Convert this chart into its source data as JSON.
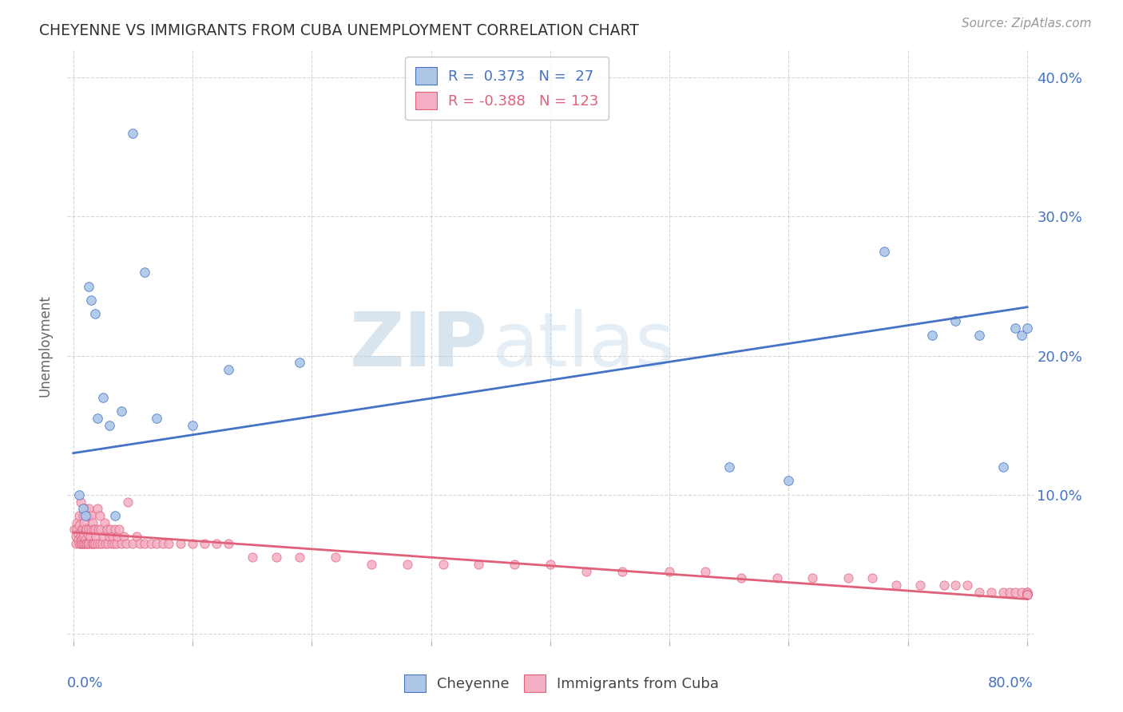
{
  "title": "CHEYENNE VS IMMIGRANTS FROM CUBA UNEMPLOYMENT CORRELATION CHART",
  "source": "Source: ZipAtlas.com",
  "ylabel": "Unemployment",
  "cheyenne_R": 0.373,
  "cheyenne_N": 27,
  "cuba_R": -0.388,
  "cuba_N": 123,
  "cheyenne_color": "#adc6e8",
  "cheyenne_line_color": "#4472c4",
  "cuba_color": "#f4afc4",
  "cuba_line_color": "#e0607a",
  "cheyenne_x": [
    0.005,
    0.008,
    0.01,
    0.013,
    0.015,
    0.018,
    0.02,
    0.025,
    0.03,
    0.035,
    0.04,
    0.05,
    0.06,
    0.07,
    0.1,
    0.13,
    0.19,
    0.55,
    0.6,
    0.68,
    0.72,
    0.74,
    0.76,
    0.78,
    0.79,
    0.795,
    0.8
  ],
  "cheyenne_y": [
    0.1,
    0.09,
    0.085,
    0.25,
    0.24,
    0.23,
    0.155,
    0.17,
    0.15,
    0.085,
    0.16,
    0.36,
    0.26,
    0.155,
    0.15,
    0.19,
    0.195,
    0.12,
    0.11,
    0.275,
    0.215,
    0.225,
    0.215,
    0.12,
    0.22,
    0.215,
    0.22
  ],
  "cuba_x": [
    0.001,
    0.002,
    0.002,
    0.003,
    0.003,
    0.004,
    0.004,
    0.005,
    0.005,
    0.005,
    0.006,
    0.006,
    0.006,
    0.007,
    0.007,
    0.007,
    0.008,
    0.008,
    0.008,
    0.008,
    0.009,
    0.009,
    0.009,
    0.01,
    0.01,
    0.01,
    0.01,
    0.011,
    0.011,
    0.012,
    0.012,
    0.012,
    0.013,
    0.013,
    0.013,
    0.014,
    0.015,
    0.015,
    0.015,
    0.016,
    0.016,
    0.017,
    0.017,
    0.018,
    0.018,
    0.019,
    0.02,
    0.02,
    0.021,
    0.022,
    0.022,
    0.023,
    0.024,
    0.025,
    0.026,
    0.027,
    0.028,
    0.029,
    0.03,
    0.031,
    0.032,
    0.033,
    0.034,
    0.035,
    0.036,
    0.037,
    0.038,
    0.04,
    0.042,
    0.044,
    0.046,
    0.05,
    0.053,
    0.056,
    0.06,
    0.065,
    0.07,
    0.075,
    0.08,
    0.09,
    0.1,
    0.11,
    0.12,
    0.13,
    0.15,
    0.17,
    0.19,
    0.22,
    0.25,
    0.28,
    0.31,
    0.34,
    0.37,
    0.4,
    0.43,
    0.46,
    0.5,
    0.53,
    0.56,
    0.59,
    0.62,
    0.65,
    0.67,
    0.69,
    0.71,
    0.73,
    0.74,
    0.75,
    0.76,
    0.77,
    0.78,
    0.785,
    0.79,
    0.795,
    0.8,
    0.8,
    0.8,
    0.8,
    0.8,
    0.8,
    0.8,
    0.8,
    0.8
  ],
  "cuba_y": [
    0.075,
    0.07,
    0.065,
    0.08,
    0.075,
    0.072,
    0.068,
    0.085,
    0.078,
    0.065,
    0.095,
    0.07,
    0.065,
    0.075,
    0.068,
    0.065,
    0.085,
    0.075,
    0.07,
    0.065,
    0.08,
    0.072,
    0.065,
    0.09,
    0.075,
    0.068,
    0.065,
    0.075,
    0.065,
    0.085,
    0.072,
    0.065,
    0.09,
    0.075,
    0.065,
    0.07,
    0.085,
    0.075,
    0.065,
    0.08,
    0.065,
    0.075,
    0.065,
    0.075,
    0.065,
    0.07,
    0.09,
    0.065,
    0.075,
    0.085,
    0.065,
    0.075,
    0.065,
    0.07,
    0.08,
    0.065,
    0.075,
    0.065,
    0.07,
    0.075,
    0.065,
    0.07,
    0.065,
    0.075,
    0.065,
    0.07,
    0.075,
    0.065,
    0.07,
    0.065,
    0.095,
    0.065,
    0.07,
    0.065,
    0.065,
    0.065,
    0.065,
    0.065,
    0.065,
    0.065,
    0.065,
    0.065,
    0.065,
    0.065,
    0.055,
    0.055,
    0.055,
    0.055,
    0.05,
    0.05,
    0.05,
    0.05,
    0.05,
    0.05,
    0.045,
    0.045,
    0.045,
    0.045,
    0.04,
    0.04,
    0.04,
    0.04,
    0.04,
    0.035,
    0.035,
    0.035,
    0.035,
    0.035,
    0.03,
    0.03,
    0.03,
    0.03,
    0.03,
    0.03,
    0.03,
    0.03,
    0.028,
    0.028,
    0.028,
    0.028,
    0.028,
    0.028,
    0.028
  ],
  "watermark_zip": "ZIP",
  "watermark_atlas": "atlas",
  "bg_color": "#ffffff",
  "grid_color": "#cccccc",
  "title_color": "#333333",
  "axis_label_color": "#4472c4",
  "xlim": [
    0.0,
    0.8
  ],
  "ylim": [
    0.0,
    0.42
  ],
  "ytick_vals": [
    0.0,
    0.1,
    0.2,
    0.3,
    0.4
  ],
  "ytick_labels": [
    "",
    "10.0%",
    "20.0%",
    "30.0%",
    "40.0%"
  ],
  "cheyenne_line_start_y": 0.13,
  "cheyenne_line_end_y": 0.235,
  "cuba_line_start_y": 0.073,
  "cuba_line_end_y": 0.025
}
